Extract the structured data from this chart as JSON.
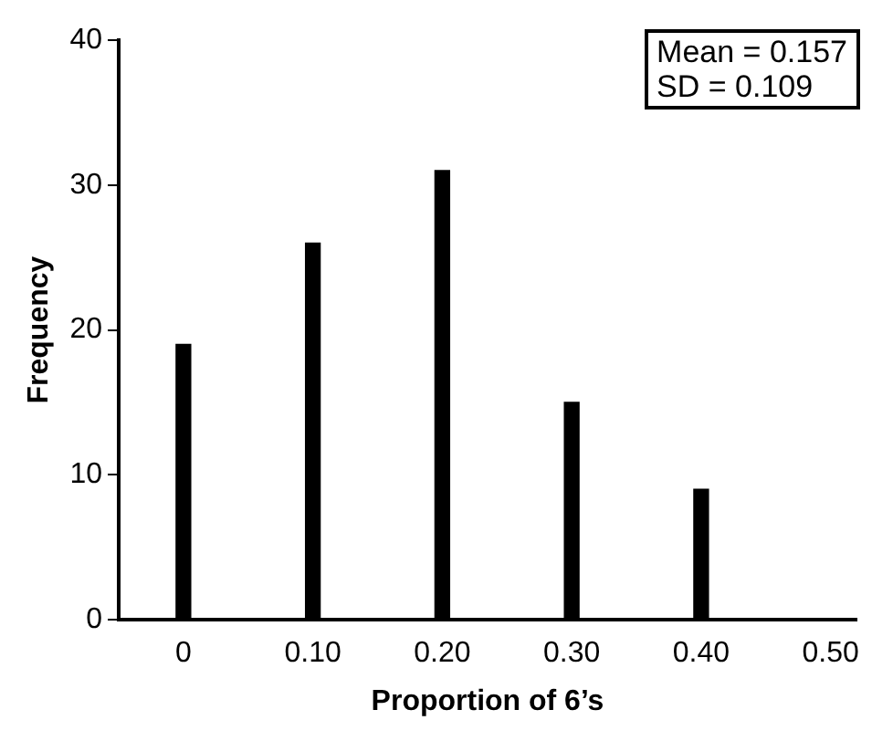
{
  "chart_data": {
    "type": "bar",
    "xlabel": "Proportion of 6’s",
    "ylabel": "Frequency",
    "x": [
      0,
      0.1,
      0.2,
      0.3,
      0.4
    ],
    "values": [
      19,
      26,
      31,
      15,
      9
    ],
    "color": "#000000",
    "xlim": [
      -0.05,
      0.52
    ],
    "xticks": [
      {
        "value": 0,
        "label": "0"
      },
      {
        "value": 0.1,
        "label": "0.10"
      },
      {
        "value": 0.2,
        "label": "0.20"
      },
      {
        "value": 0.3,
        "label": "0.30"
      },
      {
        "value": 0.4,
        "label": "0.40"
      },
      {
        "value": 0.5,
        "label": "0.50"
      }
    ],
    "ylim": [
      0,
      40
    ],
    "yticks": [
      0,
      10,
      20,
      30,
      40
    ],
    "annotations": [
      "Mean = 0.157",
      "SD = 0.109"
    ],
    "grid": false,
    "legend": false
  }
}
